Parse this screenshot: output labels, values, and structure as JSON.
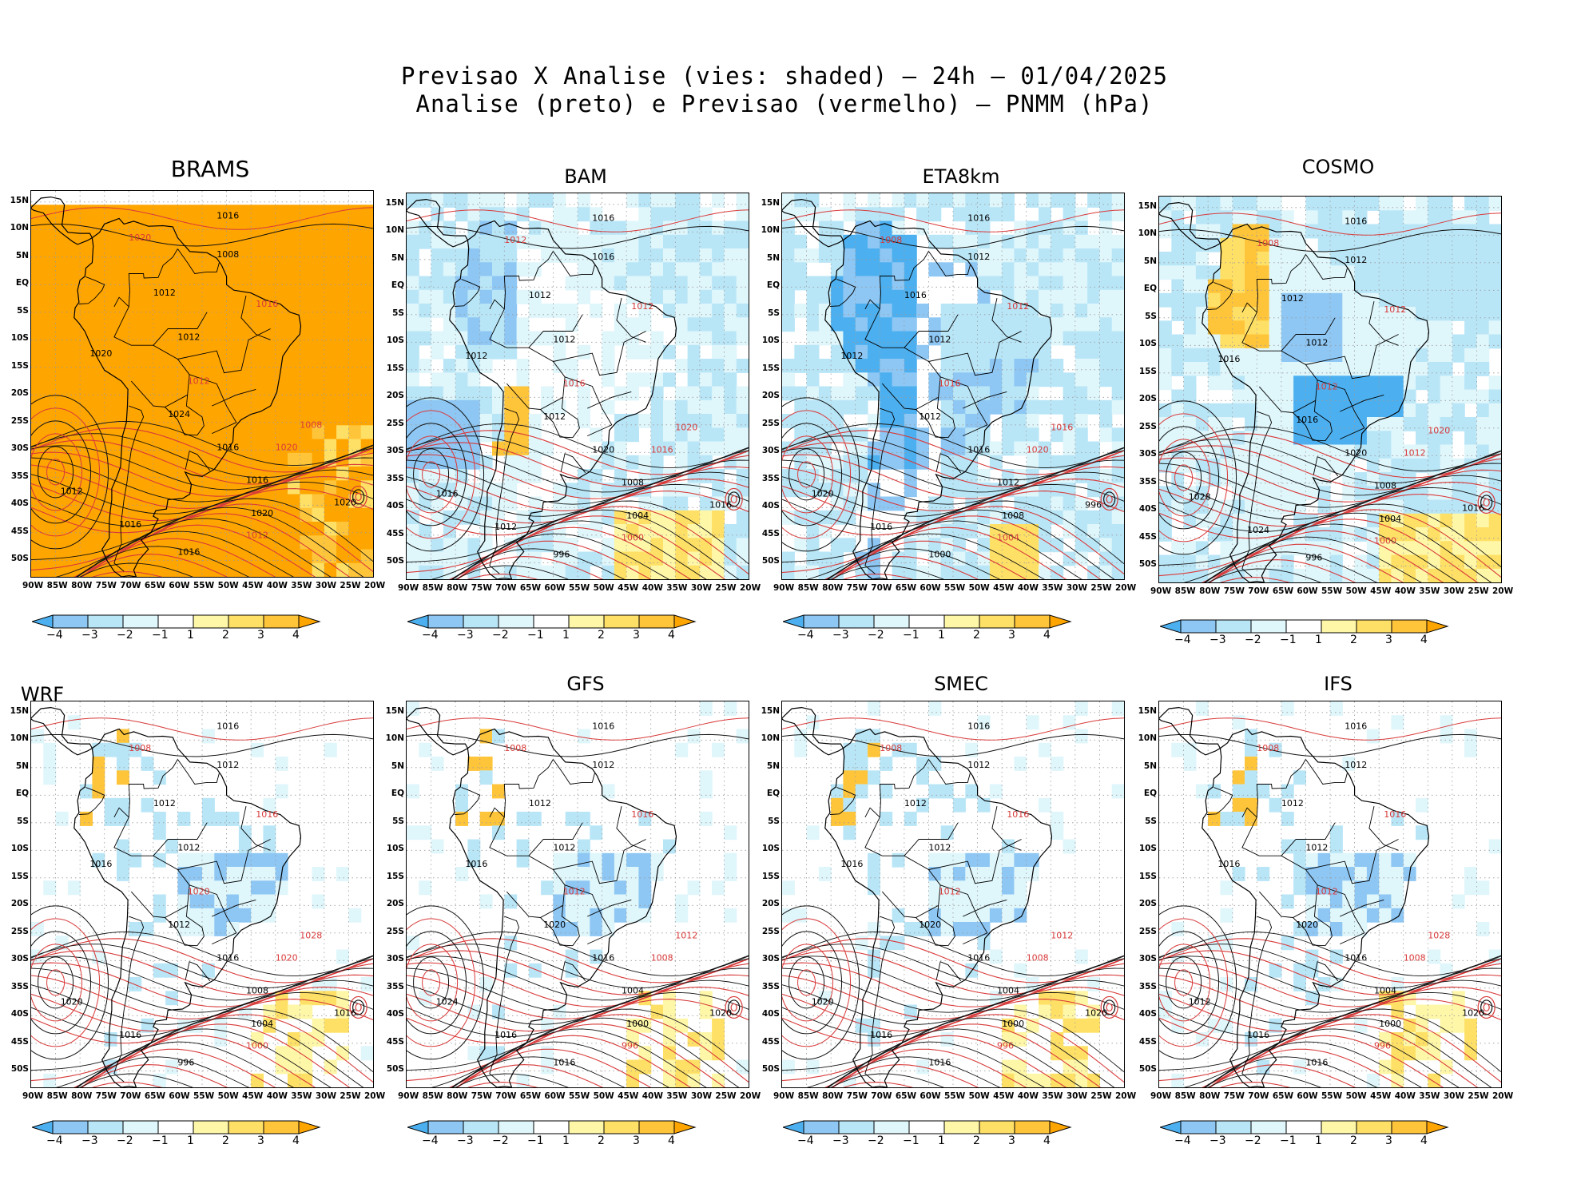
{
  "header": {
    "line1": "Previsao X Analise (vies: shaded) — 24h — 01/04/2025",
    "line2": "Analise (preto) e Previsao (vermelho) — PNMM (hPa)"
  },
  "lat_labels": [
    "15N",
    "10N",
    "5N",
    "EQ",
    "5S",
    "10S",
    "15S",
    "20S",
    "25S",
    "30S",
    "35S",
    "40S",
    "45S",
    "50S"
  ],
  "lon_labels": [
    "90W",
    "85W",
    "80W",
    "75W",
    "70W",
    "65W",
    "60W",
    "55W",
    "50W",
    "45W",
    "40W",
    "35W",
    "30W",
    "25W",
    "20W"
  ],
  "colorbar": {
    "labels": [
      "−4",
      "−3",
      "−2",
      "−1",
      "1",
      "2",
      "3",
      "4"
    ],
    "colors": [
      "#4cb0f0",
      "#8ec7f4",
      "#b9e6f7",
      "#dff6fb",
      "#ffffff",
      "#fff7a8",
      "#ffe066",
      "#ffc53a",
      "#ffa500"
    ]
  },
  "panels": [
    {
      "name": "BRAMS",
      "style": "orange",
      "labels": [
        "1016",
        "1020",
        "1008",
        "1012",
        "1016",
        "1012",
        "1020",
        "1012",
        "1024",
        "1016",
        "1020",
        "1016",
        "1020",
        "1012",
        "1016",
        "1020",
        "1008",
        "1012",
        "1016"
      ]
    },
    {
      "name": "BAM",
      "style": "blue-light",
      "labels": [
        "1016",
        "1012",
        "1016",
        "1012",
        "1012",
        "1012",
        "1012",
        "1016",
        "1012",
        "1020",
        "1016",
        "1008",
        "1004",
        "1000",
        "996",
        "1016",
        "1020",
        "1016",
        "1012"
      ]
    },
    {
      "name": "ETA8km",
      "style": "blue-strong",
      "labels": [
        "1016",
        "1008",
        "1012",
        "1016",
        "1012",
        "1012",
        "1012",
        "1016",
        "1012",
        "1016",
        "1020",
        "1012",
        "1008",
        "1004",
        "1000",
        "996",
        "1016",
        "1020",
        "1016"
      ]
    },
    {
      "name": "COSMO",
      "style": "blue-mixed",
      "labels": [
        "1016",
        "1008",
        "1012",
        "1012",
        "1012",
        "1012",
        "1016",
        "1012",
        "1016",
        "1020",
        "1012",
        "1008",
        "1004",
        "1000",
        "996",
        "1016",
        "1020",
        "1028",
        "1024"
      ]
    },
    {
      "name": "WRF",
      "style": "light",
      "labels": [
        "1016",
        "1008",
        "1012",
        "1012",
        "1016",
        "1012",
        "1016",
        "1020",
        "1012",
        "1016",
        "1020",
        "1008",
        "1004",
        "1000",
        "996",
        "1016",
        "1028",
        "1020",
        "1016"
      ]
    },
    {
      "name": "GFS",
      "style": "light",
      "labels": [
        "1016",
        "1008",
        "1012",
        "1012",
        "1016",
        "1012",
        "1016",
        "1012",
        "1020",
        "1016",
        "1008",
        "1004",
        "1000",
        "996",
        "1016",
        "1020",
        "1012",
        "1024",
        "1016"
      ]
    },
    {
      "name": "SMEC",
      "style": "light",
      "labels": [
        "1016",
        "1008",
        "1012",
        "1012",
        "1016",
        "1012",
        "1016",
        "1012",
        "1020",
        "1016",
        "1008",
        "1004",
        "1000",
        "996",
        "1016",
        "1020",
        "1012",
        "1020",
        "1016"
      ]
    },
    {
      "name": "IFS",
      "style": "light",
      "labels": [
        "1016",
        "1008",
        "1012",
        "1012",
        "1016",
        "1012",
        "1016",
        "1012",
        "1020",
        "1016",
        "1008",
        "1004",
        "1000",
        "996",
        "1016",
        "1020",
        "1028",
        "1012",
        "1016"
      ]
    }
  ]
}
